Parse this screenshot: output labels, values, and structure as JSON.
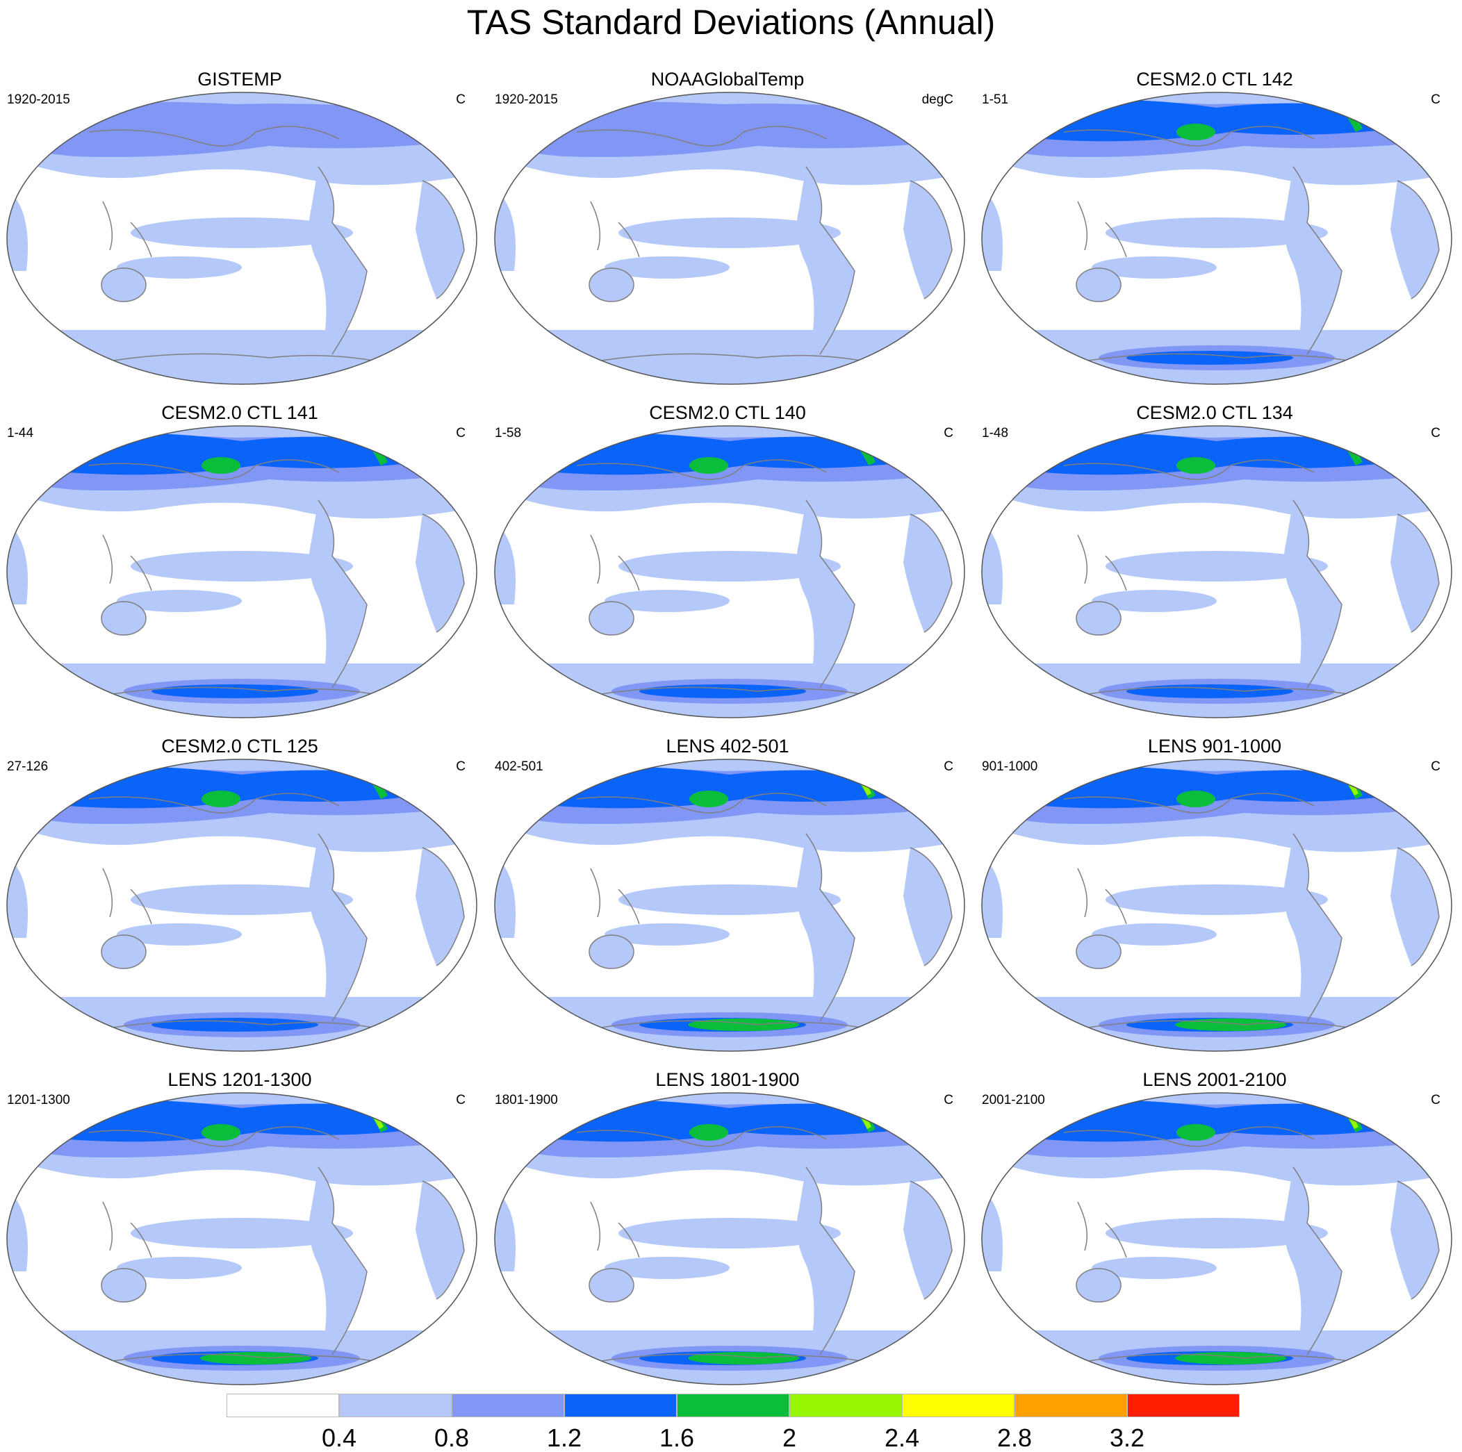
{
  "title": "TAS Standard Deviations (Annual)",
  "panels": [
    {
      "title": "GISTEMP",
      "range": "1920-2015",
      "units": "C",
      "level": 0
    },
    {
      "title": "NOAAGlobalTemp",
      "range": "1920-2015",
      "units": "degC",
      "level": 0
    },
    {
      "title": "CESM2.0 CTL 142",
      "range": "1-51",
      "units": "C",
      "level": 1
    },
    {
      "title": "CESM2.0 CTL 141",
      "range": "1-44",
      "units": "C",
      "level": 1
    },
    {
      "title": "CESM2.0 CTL 140",
      "range": "1-58",
      "units": "C",
      "level": 1
    },
    {
      "title": "CESM2.0 CTL 134",
      "range": "1-48",
      "units": "C",
      "level": 1
    },
    {
      "title": "CESM2.0 CTL 125",
      "range": "27-126",
      "units": "C",
      "level": 1
    },
    {
      "title": "LENS 402-501",
      "range": "402-501",
      "units": "C",
      "level": 2
    },
    {
      "title": "LENS 901-1000",
      "range": "901-1000",
      "units": "C",
      "level": 2
    },
    {
      "title": "LENS 1201-1300",
      "range": "1201-1300",
      "units": "C",
      "level": 2
    },
    {
      "title": "LENS 1801-1900",
      "range": "1801-1900",
      "units": "C",
      "level": 2
    },
    {
      "title": "LENS 2001-2100",
      "range": "2001-2100",
      "units": "C",
      "level": 2
    }
  ],
  "colorbar": {
    "colors": [
      "#ffffff",
      "#b4c8fa",
      "#8296f5",
      "#0a64fa",
      "#0abe3c",
      "#96f500",
      "#ffff00",
      "#ffa000",
      "#ff1e00"
    ],
    "labels": [
      "0.4",
      "0.8",
      "1.2",
      "1.6",
      "2",
      "2.4",
      "2.8",
      "3.2"
    ]
  }
}
